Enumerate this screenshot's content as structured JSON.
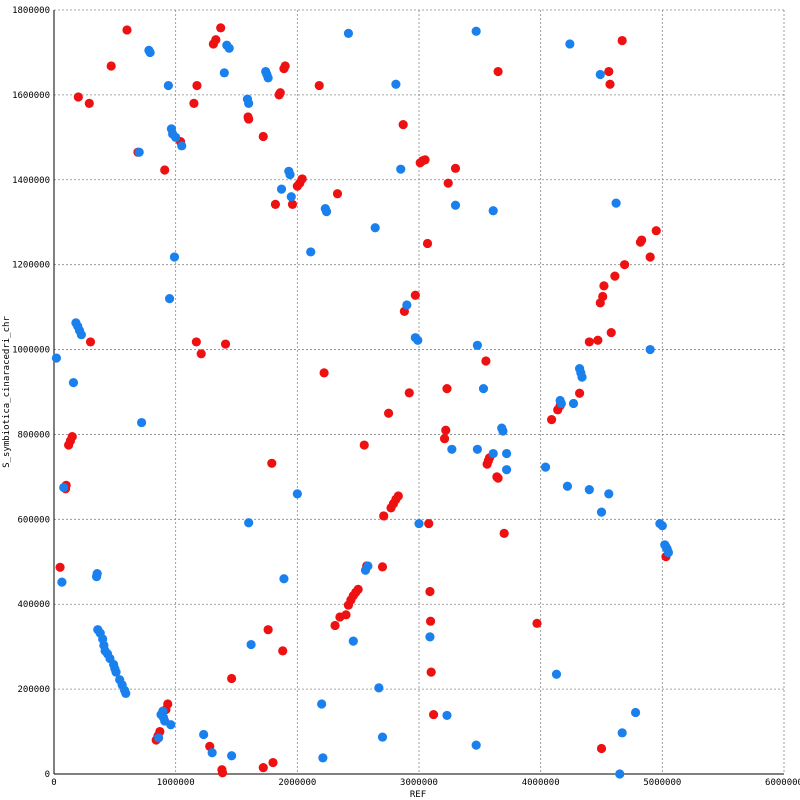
{
  "chart_data": {
    "type": "scatter",
    "xlabel": "REF",
    "ylabel": "S_symbiotica_cinaracedri_chr",
    "xlim": [
      0,
      6000000
    ],
    "ylim": [
      0,
      1800000
    ],
    "x_ticks": [
      0,
      1000000,
      2000000,
      3000000,
      4000000,
      5000000,
      6000000
    ],
    "y_ticks": [
      0,
      200000,
      400000,
      600000,
      800000,
      1000000,
      1200000,
      1400000,
      1600000,
      1800000
    ],
    "x_tick_labels": [
      "0",
      "1000000",
      "2000000",
      "3000000",
      "4000000",
      "5000000",
      "6000000"
    ],
    "y_tick_labels": [
      "0",
      "200000",
      "400000",
      "600000",
      "800000",
      "1000000",
      "1200000",
      "1400000",
      "1600000",
      "1800000"
    ],
    "grid": true,
    "series": [
      {
        "color": "#ee1111",
        "points": [
          [
            50000,
            487000
          ],
          [
            100000,
            680000
          ],
          [
            95000,
            672000
          ],
          [
            120000,
            775000
          ],
          [
            135000,
            785000
          ],
          [
            150000,
            795000
          ],
          [
            200000,
            1595000
          ],
          [
            290000,
            1580000
          ],
          [
            300000,
            1018000
          ],
          [
            470000,
            1668000
          ],
          [
            600000,
            1753000
          ],
          [
            690000,
            1465000
          ],
          [
            840000,
            80000
          ],
          [
            855000,
            90000
          ],
          [
            870000,
            100000
          ],
          [
            910000,
            1423000
          ],
          [
            920000,
            152000
          ],
          [
            935000,
            165000
          ],
          [
            1040000,
            1490000
          ],
          [
            1150000,
            1580000
          ],
          [
            1175000,
            1622000
          ],
          [
            1170000,
            1018000
          ],
          [
            1210000,
            990000
          ],
          [
            1280000,
            65000
          ],
          [
            1310000,
            1720000
          ],
          [
            1330000,
            1730000
          ],
          [
            1370000,
            1758000
          ],
          [
            1380000,
            10000
          ],
          [
            1385000,
            3000
          ],
          [
            1410000,
            1013000
          ],
          [
            1460000,
            225000
          ],
          [
            1595000,
            1548000
          ],
          [
            1600000,
            1543000
          ],
          [
            1720000,
            15000
          ],
          [
            1720000,
            1502000
          ],
          [
            1760000,
            340000
          ],
          [
            1790000,
            732000
          ],
          [
            1800000,
            27000
          ],
          [
            1820000,
            1342000
          ],
          [
            1850000,
            1600000
          ],
          [
            1860000,
            1605000
          ],
          [
            1880000,
            290000
          ],
          [
            1890000,
            1662000
          ],
          [
            1900000,
            1668000
          ],
          [
            1960000,
            1342000
          ],
          [
            2000000,
            1385000
          ],
          [
            2020000,
            1392000
          ],
          [
            2040000,
            1402000
          ],
          [
            2180000,
            1622000
          ],
          [
            2220000,
            945000
          ],
          [
            2310000,
            350000
          ],
          [
            2330000,
            1367000
          ],
          [
            2350000,
            370000
          ],
          [
            2400000,
            375000
          ],
          [
            2420000,
            398000
          ],
          [
            2440000,
            410000
          ],
          [
            2460000,
            420000
          ],
          [
            2480000,
            428000
          ],
          [
            2500000,
            435000
          ],
          [
            2550000,
            775000
          ],
          [
            2570000,
            490000
          ],
          [
            2700000,
            488000
          ],
          [
            2710000,
            608000
          ],
          [
            2750000,
            850000
          ],
          [
            2770000,
            627000
          ],
          [
            2790000,
            637000
          ],
          [
            2810000,
            647000
          ],
          [
            2830000,
            655000
          ],
          [
            2870000,
            1530000
          ],
          [
            2880000,
            1090000
          ],
          [
            2920000,
            898000
          ],
          [
            2970000,
            1128000
          ],
          [
            3010000,
            1440000
          ],
          [
            3030000,
            1445000
          ],
          [
            3050000,
            1447000
          ],
          [
            3070000,
            1250000
          ],
          [
            3080000,
            590000
          ],
          [
            3090000,
            430000
          ],
          [
            3095000,
            360000
          ],
          [
            3100000,
            240000
          ],
          [
            3120000,
            140000
          ],
          [
            3210000,
            790000
          ],
          [
            3220000,
            810000
          ],
          [
            3230000,
            908000
          ],
          [
            3240000,
            1392000
          ],
          [
            3300000,
            1427000
          ],
          [
            3550000,
            973000
          ],
          [
            3560000,
            730000
          ],
          [
            3570000,
            738000
          ],
          [
            3580000,
            745000
          ],
          [
            3640000,
            700000
          ],
          [
            3650000,
            697000
          ],
          [
            3650000,
            1655000
          ],
          [
            3700000,
            567000
          ],
          [
            3970000,
            355000
          ],
          [
            4090000,
            835000
          ],
          [
            4140000,
            858000
          ],
          [
            4160000,
            868000
          ],
          [
            4320000,
            897000
          ],
          [
            4400000,
            1018000
          ],
          [
            4470000,
            1022000
          ],
          [
            4490000,
            1110000
          ],
          [
            4510000,
            1125000
          ],
          [
            4520000,
            1150000
          ],
          [
            4500000,
            60000
          ],
          [
            4560000,
            1655000
          ],
          [
            4570000,
            1625000
          ],
          [
            4580000,
            1040000
          ],
          [
            4610000,
            1173000
          ],
          [
            4670000,
            1728000
          ],
          [
            4690000,
            1200000
          ],
          [
            4820000,
            1253000
          ],
          [
            4830000,
            1258000
          ],
          [
            4900000,
            1218000
          ],
          [
            4950000,
            1280000
          ],
          [
            5030000,
            512000
          ]
        ]
      },
      {
        "color": "#1a80ee",
        "points": [
          [
            20000,
            980000
          ],
          [
            65000,
            452000
          ],
          [
            80000,
            675000
          ],
          [
            160000,
            922000
          ],
          [
            180000,
            1063000
          ],
          [
            195000,
            1055000
          ],
          [
            210000,
            1045000
          ],
          [
            225000,
            1035000
          ],
          [
            350000,
            465000
          ],
          [
            355000,
            472000
          ],
          [
            360000,
            340000
          ],
          [
            380000,
            332000
          ],
          [
            400000,
            318000
          ],
          [
            410000,
            303000
          ],
          [
            420000,
            290000
          ],
          [
            440000,
            283000
          ],
          [
            460000,
            272000
          ],
          [
            490000,
            258000
          ],
          [
            500000,
            248000
          ],
          [
            510000,
            240000
          ],
          [
            540000,
            222000
          ],
          [
            560000,
            210000
          ],
          [
            580000,
            197000
          ],
          [
            590000,
            190000
          ],
          [
            700000,
            1465000
          ],
          [
            720000,
            828000
          ],
          [
            780000,
            1705000
          ],
          [
            790000,
            1700000
          ],
          [
            860000,
            85000
          ],
          [
            880000,
            140000
          ],
          [
            895000,
            148000
          ],
          [
            900000,
            133000
          ],
          [
            910000,
            125000
          ],
          [
            940000,
            1622000
          ],
          [
            950000,
            1120000
          ],
          [
            960000,
            116000
          ],
          [
            965000,
            1520000
          ],
          [
            975000,
            1508000
          ],
          [
            990000,
            1218000
          ],
          [
            1000000,
            1500000
          ],
          [
            1050000,
            1480000
          ],
          [
            1230000,
            93000
          ],
          [
            1300000,
            50000
          ],
          [
            1400000,
            1652000
          ],
          [
            1420000,
            1717000
          ],
          [
            1440000,
            1710000
          ],
          [
            1460000,
            43000
          ],
          [
            1590000,
            1590000
          ],
          [
            1600000,
            1580000
          ],
          [
            1600000,
            592000
          ],
          [
            1620000,
            305000
          ],
          [
            1740000,
            1655000
          ],
          [
            1750000,
            1648000
          ],
          [
            1760000,
            1640000
          ],
          [
            1870000,
            1378000
          ],
          [
            1890000,
            460000
          ],
          [
            1930000,
            1420000
          ],
          [
            1940000,
            1412000
          ],
          [
            1950000,
            1360000
          ],
          [
            2000000,
            660000
          ],
          [
            2110000,
            1230000
          ],
          [
            2200000,
            165000
          ],
          [
            2210000,
            38000
          ],
          [
            2230000,
            1332000
          ],
          [
            2240000,
            1325000
          ],
          [
            2420000,
            1745000
          ],
          [
            2460000,
            313000
          ],
          [
            2560000,
            480000
          ],
          [
            2580000,
            490000
          ],
          [
            2640000,
            1287000
          ],
          [
            2670000,
            203000
          ],
          [
            2700000,
            87000
          ],
          [
            2810000,
            1625000
          ],
          [
            2850000,
            1425000
          ],
          [
            2900000,
            1105000
          ],
          [
            2970000,
            1028000
          ],
          [
            2990000,
            1022000
          ],
          [
            3000000,
            590000
          ],
          [
            3090000,
            323000
          ],
          [
            3230000,
            138000
          ],
          [
            3270000,
            765000
          ],
          [
            3300000,
            1340000
          ],
          [
            3470000,
            1750000
          ],
          [
            3470000,
            68000
          ],
          [
            3480000,
            1010000
          ],
          [
            3480000,
            765000
          ],
          [
            3530000,
            908000
          ],
          [
            3610000,
            755000
          ],
          [
            3610000,
            1327000
          ],
          [
            3680000,
            815000
          ],
          [
            3690000,
            808000
          ],
          [
            3720000,
            755000
          ],
          [
            3720000,
            717000
          ],
          [
            4040000,
            723000
          ],
          [
            4130000,
            235000
          ],
          [
            4160000,
            880000
          ],
          [
            4170000,
            873000
          ],
          [
            4220000,
            678000
          ],
          [
            4240000,
            1720000
          ],
          [
            4270000,
            873000
          ],
          [
            4320000,
            955000
          ],
          [
            4330000,
            945000
          ],
          [
            4340000,
            935000
          ],
          [
            4400000,
            670000
          ],
          [
            4490000,
            1648000
          ],
          [
            4500000,
            617000
          ],
          [
            4560000,
            660000
          ],
          [
            4620000,
            1345000
          ],
          [
            4650000,
            0
          ],
          [
            4670000,
            97000
          ],
          [
            4780000,
            145000
          ],
          [
            4900000,
            1000000
          ],
          [
            4980000,
            590000
          ],
          [
            5000000,
            585000
          ],
          [
            5020000,
            540000
          ],
          [
            5030000,
            535000
          ],
          [
            5040000,
            530000
          ],
          [
            5050000,
            522000
          ]
        ]
      }
    ]
  }
}
